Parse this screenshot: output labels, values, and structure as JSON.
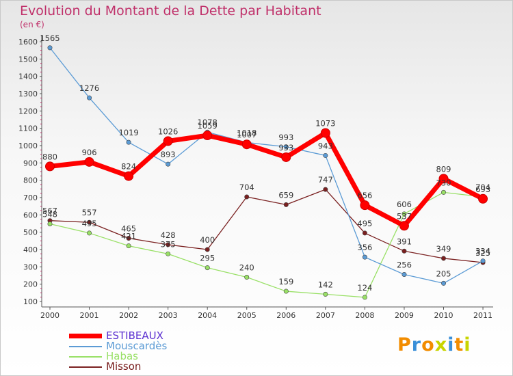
{
  "header": {
    "title": "Evolution du Montant de la Dette par Habitant",
    "subtitle": "(en €)"
  },
  "logo": {
    "text": "Proxiti"
  },
  "chart_data": {
    "type": "line",
    "title": "Evolution du Montant de la Dette par Habitant",
    "subtitle": "(en €)",
    "xlabel": "",
    "ylabel": "",
    "x": [
      "2000",
      "2001",
      "2002",
      "2003",
      "2004",
      "2005",
      "2006",
      "2007",
      "2008",
      "2009",
      "2010",
      "2011"
    ],
    "ylim": [
      100,
      1600
    ],
    "yticks": [
      100,
      200,
      300,
      400,
      500,
      600,
      700,
      800,
      900,
      1000,
      1100,
      1200,
      1300,
      1400,
      1500,
      1600
    ],
    "grid": false,
    "legend": "bottom-left",
    "series": [
      {
        "name": "ESTIBEAUX",
        "color": "#ff0000",
        "values": [
          880,
          906,
          824,
          1026,
          1059,
          1007,
          933,
          1073,
          656,
          537,
          809,
          693
        ]
      },
      {
        "name": "Mouscardès",
        "color": "#5b9bd5",
        "values": [
          1565,
          1276,
          1019,
          893,
          1078,
          1018,
          993,
          943,
          356,
          256,
          205,
          334
        ]
      },
      {
        "name": "Habas",
        "color": "#99e066",
        "values": [
          548,
          495,
          421,
          375,
          295,
          240,
          159,
          142,
          124,
          606,
          730,
          704
        ]
      },
      {
        "name": "Misson",
        "color": "#7a2020",
        "values": [
          567,
          557,
          465,
          428,
          400,
          704,
          659,
          747,
          495,
          391,
          349,
          325
        ]
      }
    ],
    "data_labels": [
      [
        "880",
        "906",
        "824",
        "1026",
        "1059",
        "1007",
        "933",
        "1073",
        "656",
        "537",
        "809",
        "693"
      ],
      [
        "1565",
        "1276",
        "1019",
        "893",
        "1078",
        "1018",
        "993",
        "943",
        "356",
        "256",
        "205",
        "334"
      ],
      [
        "548",
        "495",
        "421",
        "375",
        "295",
        "240",
        "159",
        "142",
        "124",
        "606",
        "730",
        "704"
      ],
      [
        "567",
        "557",
        "465",
        "428",
        "400",
        "704",
        "659",
        "747",
        "495",
        "391",
        "349",
        "325"
      ]
    ]
  }
}
